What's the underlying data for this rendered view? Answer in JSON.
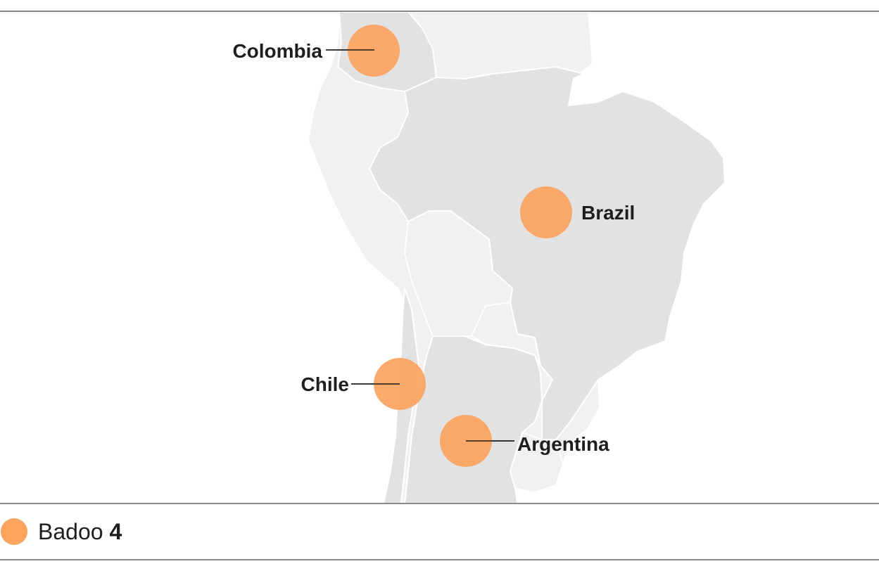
{
  "accent_color": "#fca360",
  "markers": [
    {
      "country": "Colombia"
    },
    {
      "country": "Brazil"
    },
    {
      "country": "Chile"
    },
    {
      "country": "Argentina"
    }
  ],
  "legend": {
    "name": "Badoo",
    "count": "4"
  }
}
